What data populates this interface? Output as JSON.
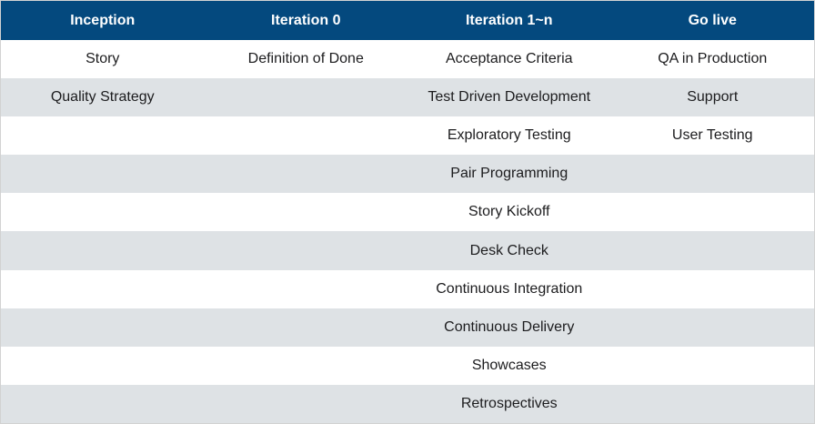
{
  "colors": {
    "header_bg": "#04497e",
    "header_text": "#ffffff",
    "row_bg": "#ffffff",
    "row_alt_bg": "#dee2e5",
    "cell_text": "#1c1c1e",
    "border": "#d2d2d2"
  },
  "chart_data": {
    "type": "table",
    "title": "",
    "columns": [
      "Inception",
      "Iteration 0",
      "Iteration 1~n",
      "Go live"
    ],
    "rows": [
      [
        "Story",
        "Definition of Done",
        "Acceptance Criteria",
        "QA in Production"
      ],
      [
        "Quality Strategy",
        "",
        "Test Driven Development",
        "Support"
      ],
      [
        "",
        "",
        "Exploratory Testing",
        "User Testing"
      ],
      [
        "",
        "",
        "Pair Programming",
        ""
      ],
      [
        "",
        "",
        "Story Kickoff",
        ""
      ],
      [
        "",
        "",
        "Desk Check",
        ""
      ],
      [
        "",
        "",
        "Continuous Integration",
        ""
      ],
      [
        "",
        "",
        "Continuous Delivery",
        ""
      ],
      [
        "",
        "",
        "Showcases",
        ""
      ],
      [
        "",
        "",
        "Retrospectives",
        ""
      ]
    ],
    "layout": {
      "columns_equal_width": true,
      "text_align": "center",
      "striped": true,
      "stripe_pattern": "odd-white-even-gray"
    }
  }
}
